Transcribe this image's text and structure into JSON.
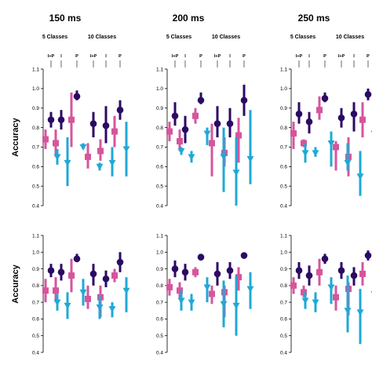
{
  "ylabel": "Accuracy",
  "yticks": [
    "0.4",
    "0.5",
    "0.6",
    "0.7",
    "0.8",
    "0.9",
    "1.0",
    "1.1"
  ],
  "time_titles": [
    "150 ms",
    "200 ms",
    "250 ms"
  ],
  "group_labels": [
    "5 Classes",
    "10 Classes"
  ],
  "condition_labels": [
    "I+P",
    "I",
    "P",
    "I+P",
    "I",
    "P"
  ],
  "colors": {
    "dark": "#2b0a63",
    "pink": "#d6559c",
    "blue": "#1fa9d6"
  },
  "marker_shapes": {
    "dark": "circle",
    "pink": "square",
    "blue": "triangle-down"
  },
  "chart_data": {
    "type": "scatter",
    "ylabel": "Accuracy",
    "ylim": [
      0.4,
      1.1
    ],
    "columns": [
      "150 ms",
      "200 ms",
      "250 ms"
    ],
    "groups": [
      "5 Classes",
      "10 Classes"
    ],
    "categories": [
      "I+P",
      "I",
      "P",
      "I+P",
      "I",
      "P"
    ],
    "panels": [
      {
        "row": 1,
        "column": "150 ms",
        "series": [
          {
            "color": "dark",
            "mean": [
              0.84,
              0.84,
              0.96,
              0.82,
              0.81,
              0.89
            ],
            "lower": [
              0.8,
              0.79,
              0.94,
              0.75,
              0.72,
              0.84
            ],
            "upper": [
              0.88,
              0.89,
              0.99,
              0.88,
              0.91,
              0.94
            ]
          },
          {
            "color": "pink",
            "mean": [
              0.74,
              0.72,
              0.84,
              0.65,
              0.68,
              0.78
            ],
            "lower": [
              0.69,
              0.65,
              0.7,
              0.59,
              0.63,
              0.7
            ],
            "upper": [
              0.79,
              0.79,
              0.98,
              0.72,
              0.74,
              0.86
            ]
          },
          {
            "color": "blue",
            "mean": [
              0.65,
              0.62,
              0.7,
              0.6,
              0.62,
              0.69
            ],
            "lower": [
              0.61,
              0.5,
              0.69,
              0.58,
              0.55,
              0.55
            ],
            "upper": [
              0.69,
              0.75,
              0.72,
              0.62,
              0.7,
              0.83
            ]
          }
        ]
      },
      {
        "row": 1,
        "column": "200 ms",
        "series": [
          {
            "color": "dark",
            "mean": [
              0.86,
              0.79,
              0.94,
              0.82,
              0.82,
              0.94
            ],
            "lower": [
              0.81,
              0.72,
              0.92,
              0.75,
              0.75,
              0.86
            ],
            "upper": [
              0.93,
              0.86,
              0.98,
              0.91,
              0.9,
              1.02
            ]
          },
          {
            "color": "pink",
            "mean": [
              0.78,
              0.73,
              0.86,
              0.72,
              0.67,
              0.76
            ],
            "lower": [
              0.73,
              0.68,
              0.82,
              0.55,
              0.6,
              0.62
            ],
            "upper": [
              0.83,
              0.79,
              0.9,
              0.82,
              0.75,
              0.85
            ]
          },
          {
            "color": "blue",
            "mean": [
              0.68,
              0.65,
              0.77,
              0.65,
              0.57,
              0.64
            ],
            "lower": [
              0.66,
              0.62,
              0.71,
              0.47,
              0.4,
              0.51
            ],
            "upper": [
              0.7,
              0.68,
              0.8,
              0.8,
              0.75,
              0.89
            ]
          }
        ]
      },
      {
        "row": 1,
        "column": "250 ms",
        "series": [
          {
            "color": "dark",
            "mean": [
              0.87,
              0.83,
              0.95,
              0.85,
              0.87,
              0.97
            ],
            "lower": [
              0.82,
              0.77,
              0.93,
              0.8,
              0.78,
              0.94
            ],
            "upper": [
              0.93,
              0.88,
              0.98,
              0.9,
              0.93,
              1.0
            ]
          },
          {
            "color": "pink",
            "mean": [
              0.77,
              0.72,
              0.89,
              0.7,
              0.65,
              0.84
            ],
            "lower": [
              0.69,
              0.7,
              0.84,
              0.58,
              0.55,
              0.75
            ],
            "upper": [
              0.83,
              0.74,
              0.96,
              0.73,
              0.75,
              0.93
            ]
          },
          {
            "color": "blue",
            "mean": [
              0.67,
              0.67,
              0.72,
              0.62,
              0.55,
              0.77
            ],
            "lower": [
              0.62,
              0.65,
              0.6,
              0.58,
              0.45,
              0.6
            ],
            "upper": [
              0.72,
              0.7,
              0.78,
              0.72,
              0.68,
              0.88
            ]
          }
        ]
      },
      {
        "row": 2,
        "column": "150 ms",
        "series": [
          {
            "color": "dark",
            "mean": [
              0.89,
              0.88,
              0.96,
              0.87,
              0.84,
              0.94
            ],
            "lower": [
              0.85,
              0.83,
              0.94,
              0.8,
              0.79,
              0.88
            ],
            "upper": [
              0.93,
              0.93,
              0.99,
              0.93,
              0.89,
              1.0
            ]
          },
          {
            "color": "pink",
            "mean": [
              0.77,
              0.77,
              0.86,
              0.72,
              0.73,
              0.86
            ],
            "lower": [
              0.7,
              0.7,
              0.76,
              0.66,
              0.61,
              0.82
            ],
            "upper": [
              0.84,
              0.85,
              0.96,
              0.8,
              0.8,
              0.9
            ]
          },
          {
            "color": "blue",
            "mean": [
              0.7,
              0.68,
              0.76,
              0.67,
              0.66,
              0.77
            ],
            "lower": [
              0.65,
              0.6,
              0.68,
              0.6,
              0.61,
              0.64
            ],
            "upper": [
              0.75,
              0.76,
              0.84,
              0.74,
              0.7,
              0.85
            ]
          }
        ]
      },
      {
        "row": 2,
        "column": "200 ms",
        "series": [
          {
            "color": "dark",
            "mean": [
              0.9,
              0.88,
              0.97,
              0.87,
              0.89,
              0.98
            ],
            "lower": [
              0.85,
              0.83,
              0.95,
              0.8,
              0.84,
              0.97
            ],
            "upper": [
              0.95,
              0.93,
              0.99,
              0.94,
              0.94,
              0.99
            ]
          },
          {
            "color": "pink",
            "mean": [
              0.79,
              0.77,
              0.88,
              0.75,
              0.76,
              0.85
            ],
            "lower": [
              0.74,
              0.72,
              0.85,
              0.69,
              0.61,
              0.77
            ],
            "upper": [
              0.84,
              0.82,
              0.91,
              0.8,
              0.8,
              0.91
            ]
          },
          {
            "color": "blue",
            "mean": [
              0.71,
              0.7,
              0.79,
              0.69,
              0.68,
              0.78
            ],
            "lower": [
              0.65,
              0.65,
              0.7,
              0.55,
              0.5,
              0.66
            ],
            "upper": [
              0.77,
              0.75,
              0.85,
              0.83,
              0.86,
              0.88
            ]
          }
        ]
      },
      {
        "row": 2,
        "column": "250 ms",
        "series": [
          {
            "color": "dark",
            "mean": [
              0.89,
              0.86,
              0.96,
              0.89,
              0.86,
              0.98
            ],
            "lower": [
              0.84,
              0.8,
              0.93,
              0.84,
              0.8,
              0.95
            ],
            "upper": [
              0.94,
              0.92,
              0.99,
              0.94,
              0.91,
              1.01
            ]
          },
          {
            "color": "pink",
            "mean": [
              0.8,
              0.76,
              0.88,
              0.73,
              0.78,
              0.87
            ],
            "lower": [
              0.75,
              0.73,
              0.8,
              0.65,
              0.62,
              0.8
            ],
            "upper": [
              0.85,
              0.8,
              0.96,
              0.8,
              0.82,
              0.94
            ]
          },
          {
            "color": "blue",
            "mean": [
              0.71,
              0.7,
              0.79,
              0.65,
              0.64,
              0.75
            ],
            "lower": [
              0.66,
              0.64,
              0.69,
              0.52,
              0.45,
              0.62
            ],
            "upper": [
              0.76,
              0.76,
              0.85,
              0.86,
              0.78,
              0.86
            ]
          }
        ]
      }
    ]
  }
}
